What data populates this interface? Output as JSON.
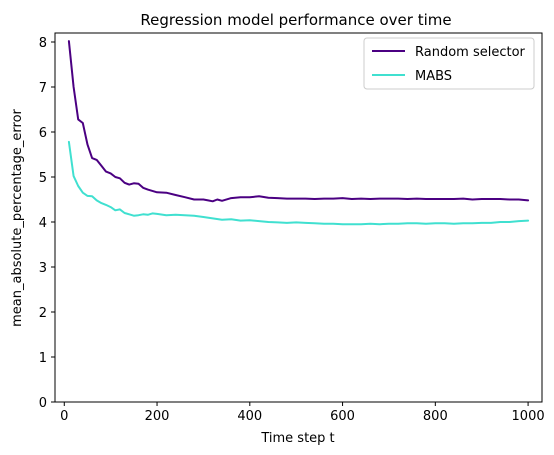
{
  "chart_data": {
    "type": "line",
    "title": "Regression model performance over time",
    "xlabel": "Time step t",
    "ylabel": "mean_absolute_percentage_error",
    "xlim": [
      -20,
      1030
    ],
    "ylim": [
      0,
      8.2
    ],
    "xticks": [
      0,
      200,
      400,
      600,
      800,
      1000
    ],
    "yticks": [
      0,
      1,
      2,
      3,
      4,
      5,
      6,
      7,
      8
    ],
    "grid": false,
    "legend_position": "top-right",
    "series": [
      {
        "name": "Random selector",
        "color": "#4b0082",
        "x": [
          10,
          20,
          30,
          40,
          50,
          60,
          70,
          80,
          90,
          100,
          110,
          120,
          130,
          140,
          150,
          160,
          170,
          180,
          190,
          200,
          220,
          240,
          260,
          280,
          300,
          310,
          320,
          330,
          340,
          360,
          380,
          400,
          420,
          440,
          460,
          480,
          500,
          520,
          540,
          560,
          580,
          600,
          620,
          640,
          660,
          680,
          700,
          720,
          740,
          760,
          780,
          800,
          820,
          840,
          860,
          880,
          900,
          920,
          940,
          960,
          980,
          1000
        ],
        "y": [
          8.02,
          7.0,
          6.28,
          6.2,
          5.72,
          5.42,
          5.38,
          5.25,
          5.12,
          5.08,
          5.0,
          4.97,
          4.87,
          4.83,
          4.86,
          4.85,
          4.76,
          4.72,
          4.69,
          4.66,
          4.65,
          4.6,
          4.55,
          4.5,
          4.5,
          4.48,
          4.46,
          4.5,
          4.47,
          4.53,
          4.55,
          4.55,
          4.57,
          4.54,
          4.53,
          4.52,
          4.52,
          4.52,
          4.51,
          4.52,
          4.52,
          4.53,
          4.51,
          4.52,
          4.51,
          4.52,
          4.52,
          4.52,
          4.51,
          4.52,
          4.51,
          4.51,
          4.51,
          4.51,
          4.52,
          4.5,
          4.51,
          4.51,
          4.51,
          4.5,
          4.5,
          4.48
        ]
      },
      {
        "name": "MABS",
        "color": "#40e0d0",
        "x": [
          10,
          20,
          30,
          40,
          50,
          60,
          70,
          80,
          90,
          100,
          110,
          120,
          130,
          140,
          150,
          160,
          170,
          180,
          190,
          200,
          220,
          240,
          260,
          280,
          300,
          320,
          340,
          360,
          380,
          400,
          420,
          440,
          460,
          480,
          500,
          520,
          540,
          560,
          580,
          600,
          620,
          640,
          660,
          680,
          700,
          720,
          740,
          760,
          780,
          800,
          820,
          840,
          860,
          880,
          900,
          920,
          940,
          960,
          980,
          1000
        ],
        "y": [
          5.78,
          5.02,
          4.8,
          4.65,
          4.58,
          4.57,
          4.48,
          4.42,
          4.38,
          4.33,
          4.26,
          4.28,
          4.2,
          4.17,
          4.14,
          4.15,
          4.17,
          4.16,
          4.19,
          4.18,
          4.15,
          4.16,
          4.15,
          4.14,
          4.11,
          4.08,
          4.05,
          4.06,
          4.03,
          4.04,
          4.02,
          4.0,
          3.99,
          3.98,
          3.99,
          3.98,
          3.97,
          3.96,
          3.96,
          3.95,
          3.95,
          3.95,
          3.96,
          3.95,
          3.96,
          3.96,
          3.97,
          3.97,
          3.96,
          3.97,
          3.97,
          3.96,
          3.97,
          3.97,
          3.98,
          3.98,
          4.0,
          4.0,
          4.02,
          4.03
        ]
      }
    ]
  }
}
